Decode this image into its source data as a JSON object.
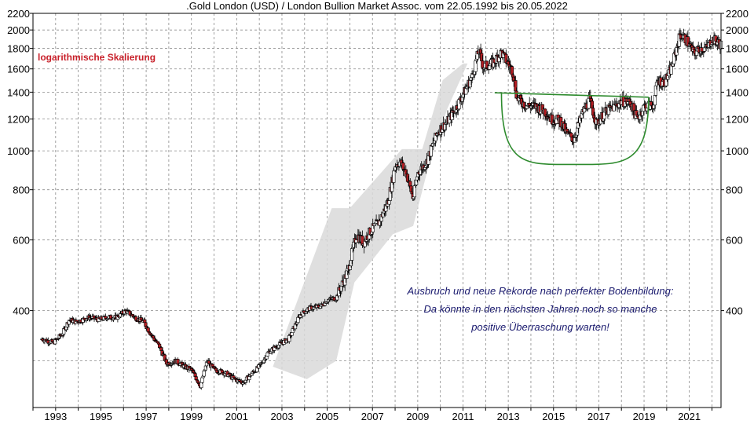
{
  "chart_data": {
    "type": "candlestick",
    "title": ".Gold London (USD) / London Bullion Market Assoc. vom 22.05.1992 bis 20.05.2022",
    "scale_note": "logarithmische Skalierung",
    "y_scale": "log",
    "ylim": [
      250,
      2200
    ],
    "xlim": [
      1992.0,
      2022.4
    ],
    "y_ticks": [
      {
        "value": 2200,
        "label": "2200"
      },
      {
        "value": 2000,
        "label": "2000"
      },
      {
        "value": 1800,
        "label": "1800"
      },
      {
        "value": 1600,
        "label": "1600"
      },
      {
        "value": 1400,
        "label": "1400"
      },
      {
        "value": 1200,
        "label": "1200"
      },
      {
        "value": 1000,
        "label": "1000"
      },
      {
        "value": 800,
        "label": "800"
      },
      {
        "value": 600,
        "label": "600"
      },
      {
        "value": 400,
        "label": "400"
      }
    ],
    "minor_y_grid": [
      300
    ],
    "x_ticks": [
      {
        "value": 1993,
        "label": "1993"
      },
      {
        "value": 1995,
        "label": "1995"
      },
      {
        "value": 1997,
        "label": "1997"
      },
      {
        "value": 1999,
        "label": "1999"
      },
      {
        "value": 2001,
        "label": "2001"
      },
      {
        "value": 2003,
        "label": "2003"
      },
      {
        "value": 2005,
        "label": "2005"
      },
      {
        "value": 2007,
        "label": "2007"
      },
      {
        "value": 2009,
        "label": "2009"
      },
      {
        "value": 2011,
        "label": "2011"
      },
      {
        "value": 2013,
        "label": "2013"
      },
      {
        "value": 2015,
        "label": "2015"
      },
      {
        "value": 2017,
        "label": "2017"
      },
      {
        "value": 2019,
        "label": "2019"
      },
      {
        "value": 2021,
        "label": "2021"
      }
    ],
    "x_grid": [
      1992,
      1993,
      1994,
      1995,
      1996,
      1997,
      1998,
      1999,
      2000,
      2001,
      2002,
      2003,
      2004,
      2005,
      2006,
      2007,
      2008,
      2009,
      2010,
      2011,
      2012,
      2013,
      2014,
      2015,
      2016,
      2017,
      2018,
      2019,
      2020,
      2021,
      2022
    ],
    "price_path": [
      [
        1992.4,
        340
      ],
      [
        1992.9,
        333
      ],
      [
        1993.3,
        350
      ],
      [
        1993.6,
        380
      ],
      [
        1993.9,
        375
      ],
      [
        1994.5,
        385
      ],
      [
        1994.9,
        380
      ],
      [
        1995.3,
        385
      ],
      [
        1995.7,
        385
      ],
      [
        1996.1,
        400
      ],
      [
        1996.5,
        385
      ],
      [
        1996.9,
        375
      ],
      [
        1997.2,
        350
      ],
      [
        1997.6,
        325
      ],
      [
        1997.9,
        295
      ],
      [
        1998.3,
        300
      ],
      [
        1998.7,
        290
      ],
      [
        1999.0,
        285
      ],
      [
        1999.4,
        260
      ],
      [
        1999.7,
        300
      ],
      [
        2000.0,
        285
      ],
      [
        2000.5,
        280
      ],
      [
        2000.9,
        270
      ],
      [
        2001.3,
        265
      ],
      [
        2001.7,
        280
      ],
      [
        2002.0,
        290
      ],
      [
        2002.4,
        315
      ],
      [
        2002.9,
        330
      ],
      [
        2003.3,
        340
      ],
      [
        2003.8,
        390
      ],
      [
        2004.2,
        405
      ],
      [
        2004.7,
        410
      ],
      [
        2005.0,
        425
      ],
      [
        2005.4,
        430
      ],
      [
        2005.9,
        500
      ],
      [
        2006.3,
        620
      ],
      [
        2006.6,
        590
      ],
      [
        2006.9,
        630
      ],
      [
        2007.3,
        665
      ],
      [
        2007.7,
        750
      ],
      [
        2008.0,
        920
      ],
      [
        2008.2,
        940
      ],
      [
        2008.5,
        880
      ],
      [
        2008.8,
        760
      ],
      [
        2009.0,
        880
      ],
      [
        2009.4,
        940
      ],
      [
        2009.9,
        1120
      ],
      [
        2010.3,
        1180
      ],
      [
        2010.7,
        1280
      ],
      [
        2011.0,
        1380
      ],
      [
        2011.4,
        1530
      ],
      [
        2011.7,
        1780
      ],
      [
        2011.9,
        1620
      ],
      [
        2012.3,
        1650
      ],
      [
        2012.7,
        1760
      ],
      [
        2012.9,
        1680
      ],
      [
        2013.2,
        1580
      ],
      [
        2013.4,
        1350
      ],
      [
        2013.8,
        1300
      ],
      [
        2014.2,
        1290
      ],
      [
        2014.6,
        1260
      ],
      [
        2014.9,
        1200
      ],
      [
        2015.3,
        1190
      ],
      [
        2015.6,
        1100
      ],
      [
        2015.9,
        1070
      ],
      [
        2016.3,
        1250
      ],
      [
        2016.6,
        1340
      ],
      [
        2016.9,
        1170
      ],
      [
        2017.3,
        1250
      ],
      [
        2017.7,
        1290
      ],
      [
        2018.0,
        1330
      ],
      [
        2018.4,
        1320
      ],
      [
        2018.7,
        1200
      ],
      [
        2019.0,
        1290
      ],
      [
        2019.4,
        1300
      ],
      [
        2019.6,
        1500
      ],
      [
        2019.9,
        1480
      ],
      [
        2020.2,
        1600
      ],
      [
        2020.6,
        1950
      ],
      [
        2020.9,
        1880
      ],
      [
        2021.2,
        1750
      ],
      [
        2021.5,
        1800
      ],
      [
        2021.8,
        1800
      ],
      [
        2022.0,
        1900
      ],
      [
        2022.2,
        1870
      ],
      [
        2022.4,
        1840
      ]
    ],
    "shaded_channel": [
      [
        2002.6,
        290
      ],
      [
        2005.2,
        720
      ],
      [
        2006.0,
        720
      ],
      [
        2008.3,
        1010
      ],
      [
        2009.2,
        1010
      ],
      [
        2010.1,
        1500
      ],
      [
        2011.0,
        1650
      ],
      [
        2011.9,
        1650
      ],
      [
        2011.2,
        1650
      ],
      [
        2010.3,
        1270
      ],
      [
        2009.4,
        880
      ],
      [
        2008.8,
        650
      ],
      [
        2007.9,
        620
      ],
      [
        2006.2,
        470
      ],
      [
        2005.4,
        300
      ],
      [
        2004.1,
        270
      ]
    ],
    "neckline": {
      "from": [
        2012.4,
        1395
      ],
      "to": [
        2019.2,
        1360
      ]
    },
    "bowl": {
      "start": [
        2012.7,
        1390
      ],
      "bottom": [
        2015.9,
        925
      ],
      "end": [
        2019.2,
        1360
      ]
    },
    "annotation_lines": [
      "Ausbruch und neue Rekorde nach perfekter Bodenbildung:",
      "Da könnte in den nächsten Jahren noch so manche",
      "positive Überraschung warten!"
    ],
    "colors": {
      "up_candle": "#ffffff",
      "down_candle": "#b31e24",
      "candle_outline": "#000000",
      "shaded_channel": "#d9d9d9",
      "pattern_lines": "#2e8b2e",
      "scale_note": "#c8202a",
      "annotation": "#1a1a6e"
    }
  }
}
